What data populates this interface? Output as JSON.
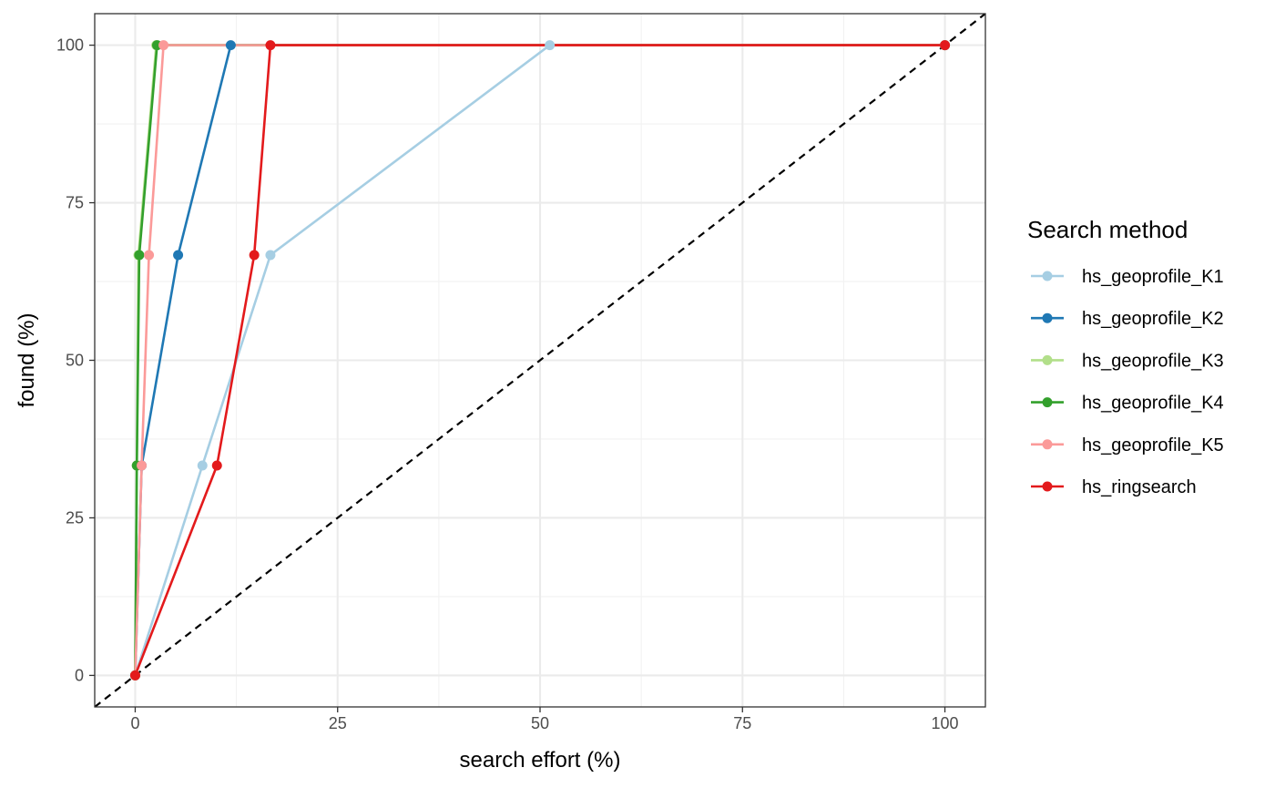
{
  "chart_data": {
    "type": "line",
    "title": "",
    "xlabel": "search effort (%)",
    "ylabel": "found (%)",
    "xlim": [
      -5,
      105
    ],
    "ylim": [
      -5,
      105
    ],
    "x_ticks": [
      0,
      25,
      50,
      75,
      100
    ],
    "y_ticks": [
      0,
      25,
      50,
      75,
      100
    ],
    "grid": true,
    "theme": "bw",
    "legend": {
      "title": "Search method",
      "position": "right"
    },
    "reference_line": {
      "style": "dashed",
      "color": "#000000",
      "slope": 1,
      "intercept": 0
    },
    "series": [
      {
        "name": "hs_geoprofile_K1",
        "color": "#A6CEE3",
        "x": [
          0,
          8.3,
          16.7,
          51.2,
          100
        ],
        "y": [
          0,
          33.3,
          66.7,
          100,
          100
        ]
      },
      {
        "name": "hs_geoprofile_K2",
        "color": "#1F78B4",
        "x": [
          0,
          0.8,
          5.3,
          11.8,
          100
        ],
        "y": [
          0,
          33.3,
          66.7,
          100,
          100
        ]
      },
      {
        "name": "hs_geoprofile_K3",
        "color": "#B2DF8A",
        "x": [
          0,
          0.2,
          0.4,
          2.6,
          100
        ],
        "y": [
          0,
          33.3,
          66.7,
          100,
          100
        ]
      },
      {
        "name": "hs_geoprofile_K4",
        "color": "#33A02C",
        "x": [
          0,
          0.2,
          0.5,
          2.7,
          100
        ],
        "y": [
          0,
          33.3,
          66.7,
          100,
          100
        ]
      },
      {
        "name": "hs_geoprofile_K5",
        "color": "#FB9A99",
        "x": [
          0,
          0.8,
          1.7,
          3.5,
          100
        ],
        "y": [
          0,
          33.3,
          66.7,
          100,
          100
        ]
      },
      {
        "name": "hs_ringsearch",
        "color": "#E31A1C",
        "x": [
          0,
          10.1,
          14.7,
          16.7,
          100
        ],
        "y": [
          0,
          33.3,
          66.7,
          100,
          100
        ]
      }
    ]
  }
}
